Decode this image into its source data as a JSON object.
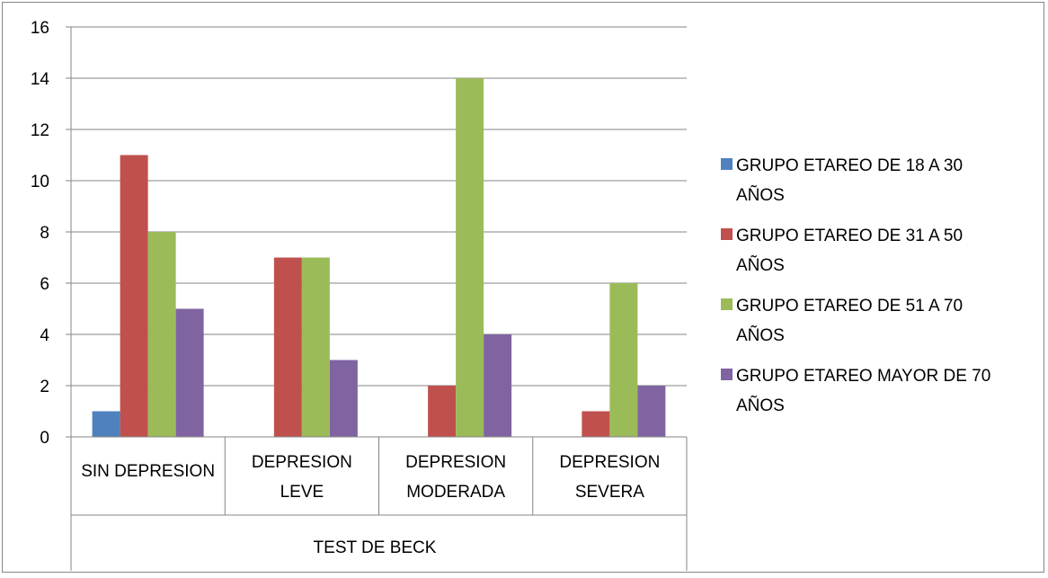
{
  "chart_data": {
    "type": "bar",
    "title": "",
    "ylabel": "",
    "xlabel": "TEST DE BECK",
    "ylim": [
      0,
      16
    ],
    "yticks": [
      0,
      2,
      4,
      6,
      8,
      10,
      12,
      14,
      16
    ],
    "grid": true,
    "legend": "right",
    "categories": [
      [
        "SIN DEPRESION"
      ],
      [
        "DEPRESION",
        "LEVE"
      ],
      [
        "DEPRESION",
        "MODERADA"
      ],
      [
        "DEPRESION",
        "SEVERA"
      ]
    ],
    "series": [
      {
        "name": [
          "GRUPO ETAREO DE 18 A 30",
          "AÑOS"
        ],
        "color": "#4F81BD",
        "values": [
          1,
          0,
          0,
          0
        ]
      },
      {
        "name": [
          "GRUPO ETAREO DE 31 A 50",
          "AÑOS"
        ],
        "color": "#C0504D",
        "values": [
          11,
          7,
          2,
          1
        ]
      },
      {
        "name": [
          "GRUPO ETAREO DE 51 A 70",
          "AÑOS"
        ],
        "color": "#9BBB59",
        "values": [
          8,
          7,
          14,
          6
        ]
      },
      {
        "name": [
          "GRUPO ETAREO MAYOR DE 70",
          "AÑOS"
        ],
        "color": "#8064A2",
        "values": [
          5,
          3,
          4,
          2
        ]
      }
    ]
  }
}
